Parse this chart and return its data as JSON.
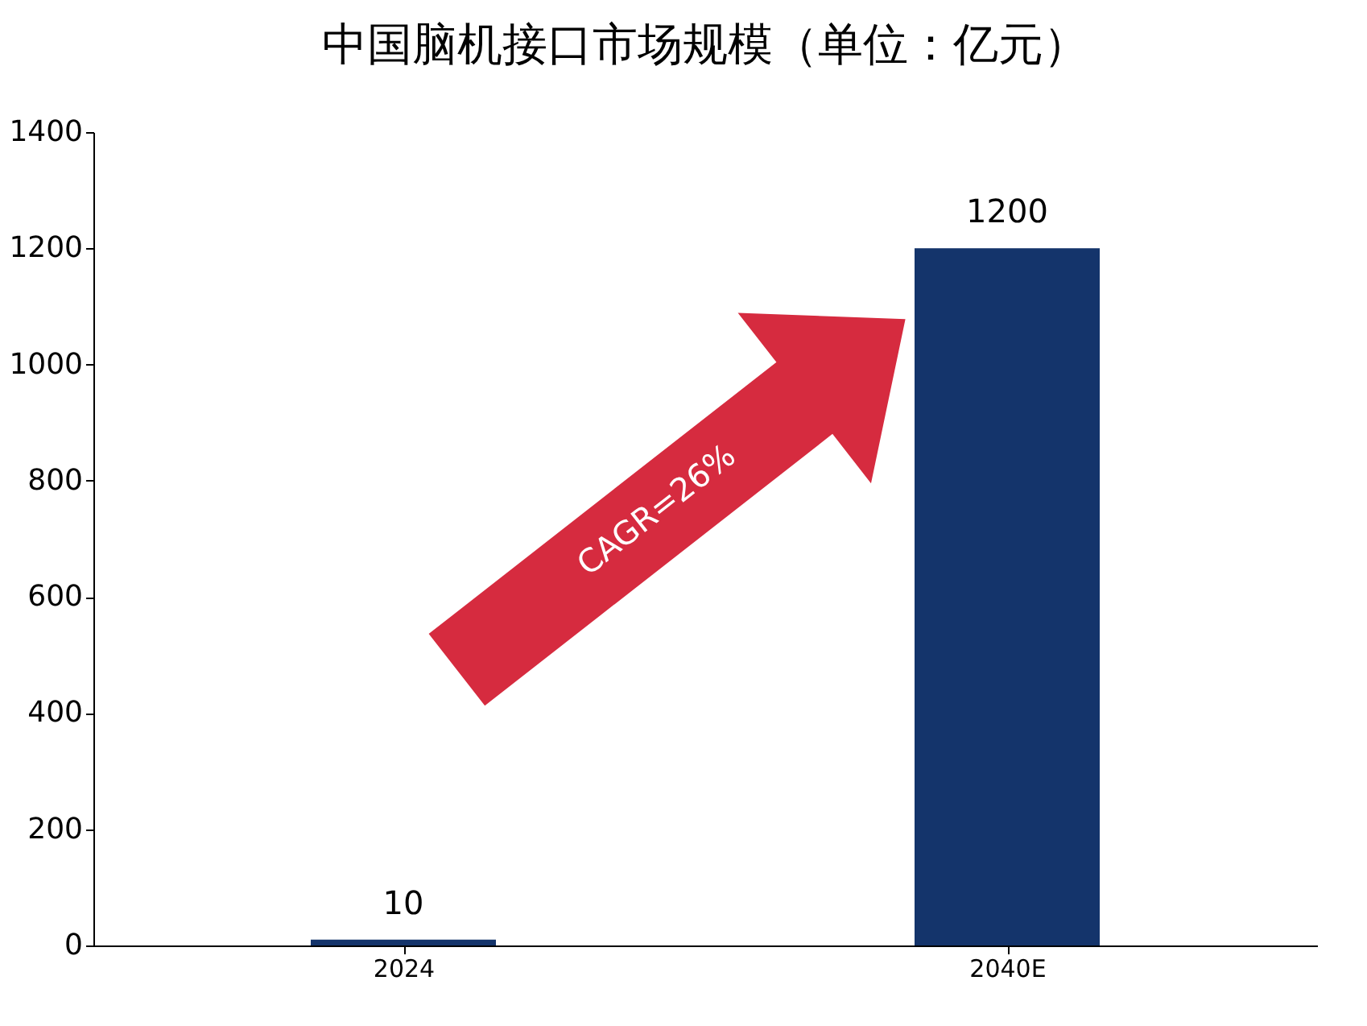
{
  "chart_data": {
    "type": "bar",
    "title": "中国脑机接口市场规模（单位：亿元）",
    "categories": [
      "2024",
      "2040E"
    ],
    "values": [
      10,
      1200
    ],
    "color": "#14346b",
    "ylim": [
      0,
      1400
    ],
    "yticks": [
      0,
      200,
      400,
      600,
      800,
      1000,
      1200,
      1400
    ],
    "grid": false,
    "data_labels": true,
    "annotations": [
      "CAGR=26%"
    ]
  }
}
